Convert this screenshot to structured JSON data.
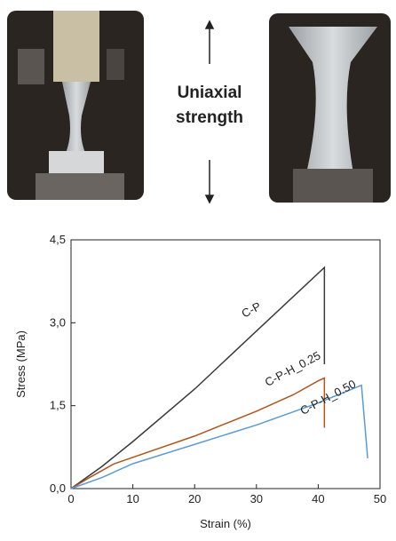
{
  "caption_lines": [
    "Uniaxial",
    "strength"
  ],
  "chart_data": {
    "type": "line",
    "x_label": "Strain (%)",
    "y_label": "Stress (MPa)",
    "xlim": [
      0,
      50
    ],
    "xticks": [
      0,
      10,
      20,
      30,
      40,
      50
    ],
    "ylim": [
      0,
      4.5
    ],
    "yticks": [
      {
        "value": 0,
        "label": "0,0"
      },
      {
        "value": 1.5,
        "label": "1,5"
      },
      {
        "value": 3,
        "label": "3,0"
      },
      {
        "value": 4.5,
        "label": "4,5"
      }
    ],
    "series": [
      {
        "name": "C-P",
        "color": "#3a3a3a",
        "x": [
          0,
          5,
          10,
          20,
          30,
          41,
          41
        ],
        "values": [
          0,
          0.4,
          0.85,
          1.8,
          2.85,
          4.0,
          2.25
        ]
      },
      {
        "name": "C-P-H_0.25",
        "color": "#b0561c",
        "x": [
          0,
          3,
          7,
          20,
          30,
          36,
          40,
          41,
          41
        ],
        "values": [
          0,
          0.2,
          0.45,
          0.95,
          1.4,
          1.7,
          1.95,
          2.0,
          1.1
        ]
      },
      {
        "name": "C-P-H_0.50",
        "color": "#5b9bd5",
        "x": [
          0,
          5,
          10,
          20,
          30,
          40,
          47,
          48
        ],
        "values": [
          0,
          0.2,
          0.45,
          0.8,
          1.15,
          1.55,
          1.87,
          0.55
        ]
      }
    ]
  }
}
